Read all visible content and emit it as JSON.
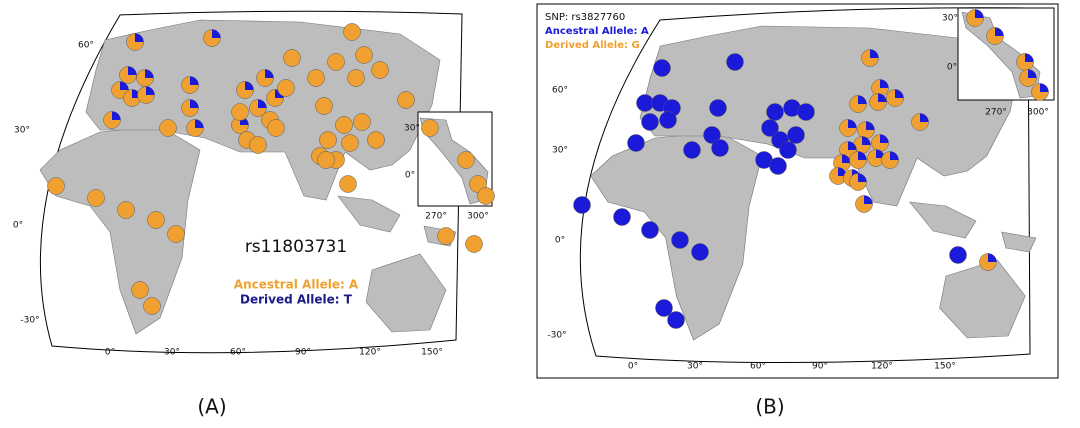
{
  "panels": [
    {
      "snp": "rs11803731",
      "ancestral": "Ancestral Allele: A",
      "derived": "Derived Allele: T",
      "lat_labels": [
        "60°",
        "30°",
        "0°",
        "-30°"
      ],
      "lon_labels": [
        "0°",
        "30°",
        "60°",
        "90°",
        "120°",
        "150°"
      ],
      "inset_lat_labels": [
        "30°",
        "0°"
      ],
      "inset_lon_labels": [
        "270°",
        "300°"
      ],
      "caption": "(A)"
    },
    {
      "snp": "SNP: rs3827760",
      "ancestral": "Ancestral Allele: A",
      "derived": "Derived Allele: G",
      "lat_labels": [
        "60°",
        "30°",
        "0°",
        "-30°"
      ],
      "lon_labels": [
        "0°",
        "30°",
        "60°",
        "90°",
        "120°",
        "150°"
      ],
      "inset_lat_labels": [
        "30°",
        "0°"
      ],
      "inset_lon_labels": [
        "270°",
        "300°"
      ],
      "caption": "(B)"
    }
  ]
}
